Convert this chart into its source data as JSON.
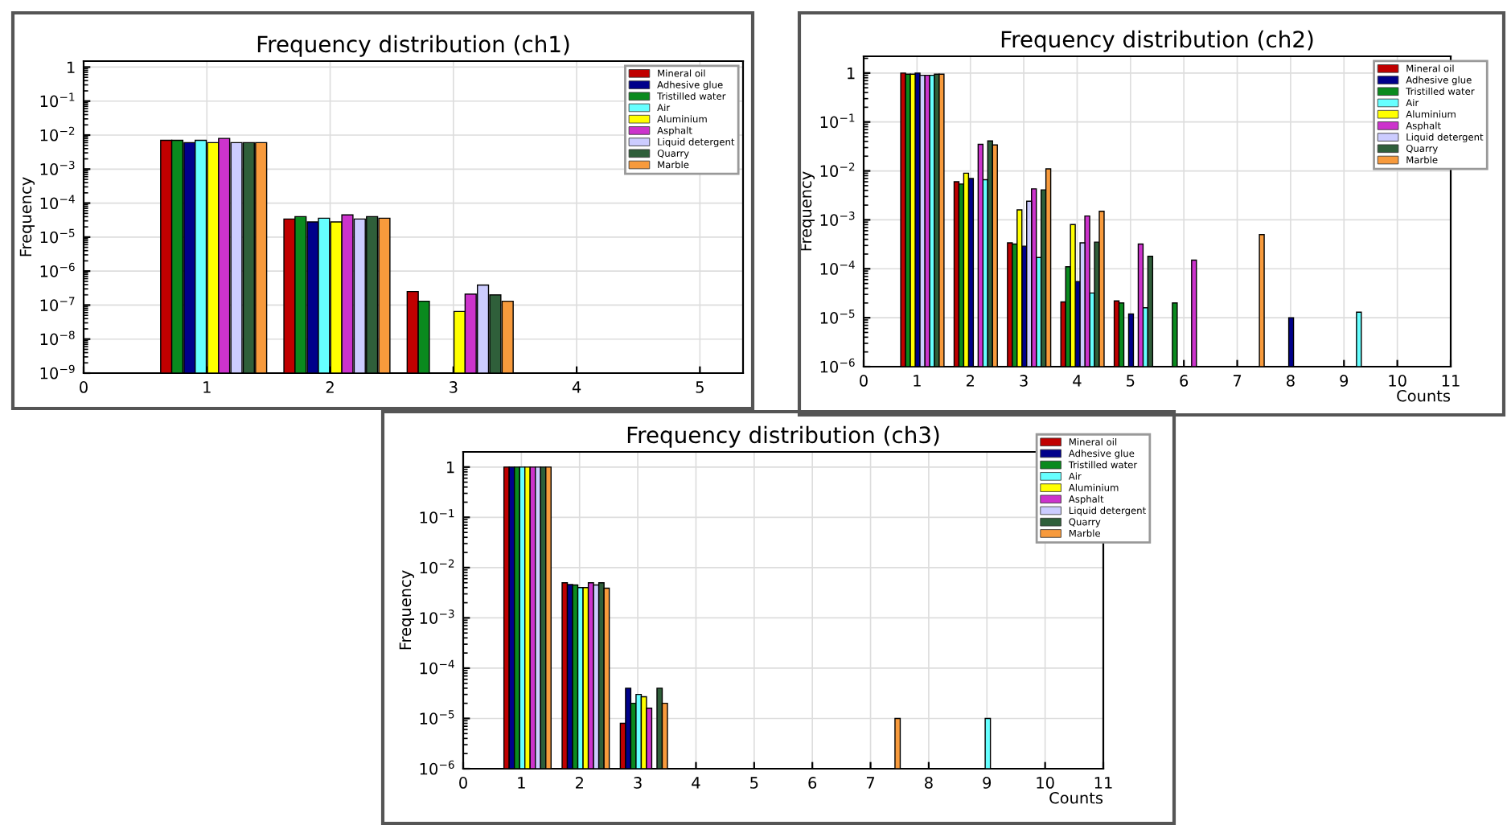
{
  "chart_data": [
    {
      "type": "bar",
      "title": "Frequency distribution (ch1)",
      "ylabel": "Frequency",
      "log": "y",
      "grid": true,
      "legend": "top right",
      "xlim": [
        0,
        5.35
      ],
      "xticks": [
        0,
        1,
        2,
        3,
        4,
        5
      ],
      "ylim": [
        1e-09,
        1.5
      ],
      "yticks": [
        {
          "value": 1,
          "label": "1"
        },
        {
          "value": 0.1,
          "label": "10$^{−1}$"
        },
        {
          "value": 0.01,
          "label": "10$^{−2}$"
        },
        {
          "value": 0.001,
          "label": "10$^{−3}$"
        },
        {
          "value": 0.0001,
          "label": "10$^{−4}$"
        },
        {
          "value": 1e-05,
          "label": "10$^{−5}$"
        },
        {
          "value": 1e-06,
          "label": "10$^{−6}$"
        },
        {
          "value": 1e-07,
          "label": "10$^{−7}$"
        },
        {
          "value": 1e-08,
          "label": "10$^{−8}$"
        },
        {
          "value": 1e-09,
          "label": "10$^{−9}$"
        }
      ],
      "series": [
        {
          "name": "Mineral oil",
          "color": "#c00000",
          "x": [
            0.67,
            1.67,
            2.67
          ],
          "values": [
            0.007,
            3.4e-05,
            2.5e-07
          ]
        },
        {
          "name": "Adhesive glue",
          "color": "#00008b",
          "x": [
            0.86,
            1.86
          ],
          "values": [
            0.006,
            2.8e-05
          ]
        },
        {
          "name": "Tristilled water",
          "color": "#0a8a1e",
          "x": [
            0.76,
            1.76,
            2.76
          ],
          "values": [
            0.007,
            4e-05,
            1.3e-07
          ]
        },
        {
          "name": "Air",
          "color": "#66ffff",
          "x": [
            0.95,
            1.95
          ],
          "values": [
            0.007,
            3.6e-05
          ]
        },
        {
          "name": "Aluminium",
          "color": "#ffff00",
          "x": [
            1.05,
            2.05,
            3.05
          ],
          "values": [
            0.006,
            2.8e-05,
            6.5e-08
          ]
        },
        {
          "name": "Asphalt",
          "color": "#cc33cc",
          "x": [
            1.14,
            2.14,
            3.14
          ],
          "values": [
            0.008,
            4.5e-05,
            2.1e-07
          ]
        },
        {
          "name": "Liquid detergent",
          "color": "#ccccff",
          "x": [
            1.24,
            2.24,
            3.24
          ],
          "values": [
            0.006,
            3.4e-05,
            3.9e-07
          ]
        },
        {
          "name": "Quarry",
          "color": "#2f5f3a",
          "x": [
            1.34,
            2.34,
            3.34
          ],
          "values": [
            0.006,
            4e-05,
            2e-07
          ]
        },
        {
          "name": "Marble",
          "color": "#f79a3c",
          "x": [
            1.44,
            2.44,
            3.44
          ],
          "values": [
            0.006,
            3.6e-05,
            1.3e-07
          ]
        }
      ]
    },
    {
      "type": "bar",
      "title": "Frequency distribution (ch2)",
      "ylabel": "Frequency",
      "xlabel": "Counts",
      "log": "y",
      "grid": true,
      "legend": "top right",
      "xlim": [
        0,
        11
      ],
      "xticks": [
        0,
        1,
        2,
        3,
        4,
        5,
        6,
        7,
        8,
        9,
        10,
        11
      ],
      "ylim": [
        1e-06,
        2.2
      ],
      "yticks": [
        {
          "value": 1,
          "label": "1"
        },
        {
          "value": 0.1,
          "label": "10$^{−1}$"
        },
        {
          "value": 0.01,
          "label": "10$^{−2}$"
        },
        {
          "value": 0.001,
          "label": "10$^{−3}$"
        },
        {
          "value": 0.0001,
          "label": "10$^{−4}$"
        },
        {
          "value": 1e-05,
          "label": "10$^{−5}$"
        },
        {
          "value": 1e-06,
          "label": "10$^{−6}$"
        }
      ],
      "series": [
        {
          "name": "Mineral oil",
          "color": "#c00000",
          "x": [
            0.74,
            1.74,
            2.74,
            3.74,
            4.74
          ],
          "values": [
            1,
            0.006,
            0.00034,
            2.1e-05,
            2.2e-05
          ]
        },
        {
          "name": "Adhesive glue",
          "color": "#00008b",
          "x": [
            1.01,
            2.01,
            3.01,
            4.01,
            5.01,
            8.01
          ],
          "values": [
            1,
            0.007,
            0.00029,
            5.5e-05,
            1.2e-05,
            1e-05
          ]
        },
        {
          "name": "Tristilled water",
          "color": "#0a8a1e",
          "x": [
            0.83,
            1.83,
            2.83,
            3.83,
            4.83,
            5.83
          ],
          "values": [
            0.95,
            0.0054,
            0.00032,
            0.00011,
            2e-05,
            2e-05
          ]
        },
        {
          "name": "Air",
          "color": "#66ffff",
          "x": [
            1.28,
            2.28,
            3.28,
            4.28,
            5.28,
            9.28
          ],
          "values": [
            0.9,
            0.0066,
            0.00017,
            3.2e-05,
            1.6e-05,
            1.3e-05
          ]
        },
        {
          "name": "Aluminium",
          "color": "#ffff00",
          "x": [
            0.92,
            1.92,
            2.92,
            3.92
          ],
          "values": [
            0.95,
            0.009,
            0.0016,
            0.0008
          ]
        },
        {
          "name": "Asphalt",
          "color": "#cc33cc",
          "x": [
            1.19,
            2.19,
            3.19,
            4.19,
            5.19,
            6.19
          ],
          "values": [
            0.9,
            0.035,
            0.0043,
            0.0012,
            0.00032,
            0.00015
          ]
        },
        {
          "name": "Liquid detergent",
          "color": "#ccccff",
          "x": [
            1.1,
            3.1,
            4.1
          ],
          "values": [
            0.9,
            0.0024,
            0.00034
          ]
        },
        {
          "name": "Quarry",
          "color": "#2f5f3a",
          "x": [
            1.37,
            2.37,
            3.37,
            4.37,
            5.37
          ],
          "values": [
            0.95,
            0.041,
            0.0041,
            0.00035,
            0.00018
          ]
        },
        {
          "name": "Marble",
          "color": "#f79a3c",
          "x": [
            1.46,
            2.46,
            3.46,
            4.46,
            7.46
          ],
          "values": [
            0.95,
            0.034,
            0.011,
            0.0015,
            0.0005
          ]
        }
      ]
    },
    {
      "type": "bar",
      "title": "Frequency distribution (ch3)",
      "ylabel": "Frequency",
      "xlabel": "Counts",
      "log": "y",
      "grid": true,
      "legend": "top right",
      "xlim": [
        0,
        11
      ],
      "xticks": [
        0,
        1,
        2,
        3,
        4,
        5,
        6,
        7,
        8,
        9,
        10,
        11
      ],
      "ylim": [
        1e-06,
        2
      ],
      "yticks": [
        {
          "value": 1,
          "label": "1"
        },
        {
          "value": 0.1,
          "label": "10$^{−1}$"
        },
        {
          "value": 0.01,
          "label": "10$^{−2}$"
        },
        {
          "value": 0.001,
          "label": "10$^{−3}$"
        },
        {
          "value": 0.0001,
          "label": "10$^{−4}$"
        },
        {
          "value": 1e-05,
          "label": "10$^{−5}$"
        },
        {
          "value": 1e-06,
          "label": "10$^{−6}$"
        }
      ],
      "series": [
        {
          "name": "Mineral oil",
          "color": "#c00000",
          "x": [
            0.745,
            1.745,
            2.745
          ],
          "values": [
            1,
            0.005,
            8e-06
          ]
        },
        {
          "name": "Adhesive glue",
          "color": "#00008b",
          "x": [
            0.835,
            1.835,
            2.835
          ],
          "values": [
            1,
            0.0046,
            4e-05
          ]
        },
        {
          "name": "Tristilled water",
          "color": "#0a8a1e",
          "x": [
            0.925,
            1.925,
            2.925
          ],
          "values": [
            1,
            0.0045,
            2e-05
          ]
        },
        {
          "name": "Air",
          "color": "#66ffff",
          "x": [
            1.015,
            2.015,
            3.015,
            9.015
          ],
          "values": [
            1,
            0.004,
            3e-05,
            1e-05
          ]
        },
        {
          "name": "Aluminium",
          "color": "#ffff00",
          "x": [
            1.105,
            2.105,
            3.105
          ],
          "values": [
            1,
            0.004,
            2.7e-05
          ]
        },
        {
          "name": "Asphalt",
          "color": "#cc33cc",
          "x": [
            1.195,
            2.195,
            3.195
          ],
          "values": [
            1,
            0.005,
            1.6e-05
          ]
        },
        {
          "name": "Liquid detergent",
          "color": "#ccccff",
          "x": [
            1.285,
            2.285
          ],
          "values": [
            1,
            0.0045
          ]
        },
        {
          "name": "Quarry",
          "color": "#2f5f3a",
          "x": [
            1.375,
            2.375,
            3.375
          ],
          "values": [
            1,
            0.005,
            4e-05
          ]
        },
        {
          "name": "Marble",
          "color": "#f79a3c",
          "x": [
            1.465,
            2.465,
            3.465,
            7.465
          ],
          "values": [
            1,
            0.0039,
            2e-05,
            1e-05
          ]
        }
      ]
    }
  ]
}
